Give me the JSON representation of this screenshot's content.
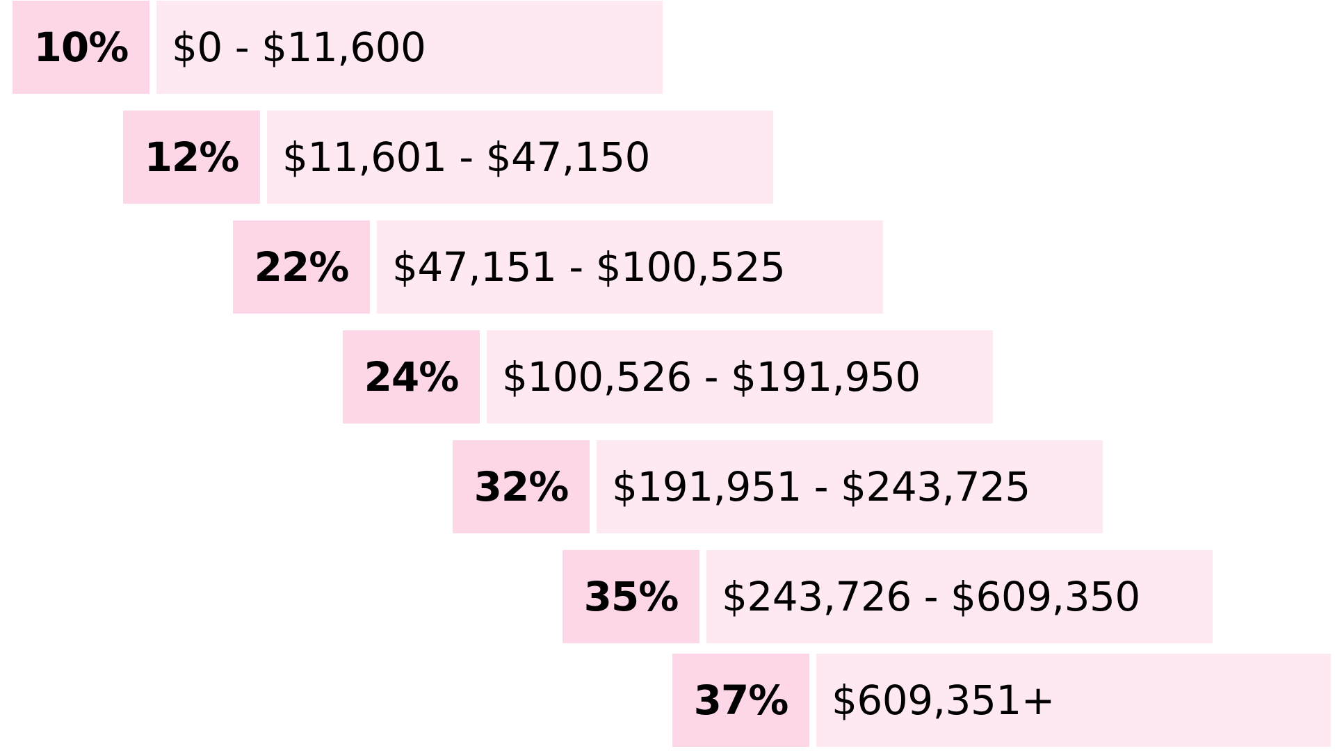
{
  "brackets": [
    {
      "rate": "10%",
      "range": "$0 - $11,600"
    },
    {
      "rate": "12%",
      "range": "$11,601 - $47,150"
    },
    {
      "rate": "22%",
      "range": "$47,151 - $100,525"
    },
    {
      "rate": "24%",
      "range": "$100,526 - $191,950"
    },
    {
      "rate": "32%",
      "range": "$191,951 - $243,725"
    },
    {
      "rate": "35%",
      "range": "$243,726 - $609,350"
    },
    {
      "rate": "37%",
      "range": "$609,351+"
    }
  ],
  "colors": {
    "rate_fill": "#fdd6e7",
    "range_fill": "#fee8f1",
    "text": "#000000",
    "background": "#ffffff"
  }
}
